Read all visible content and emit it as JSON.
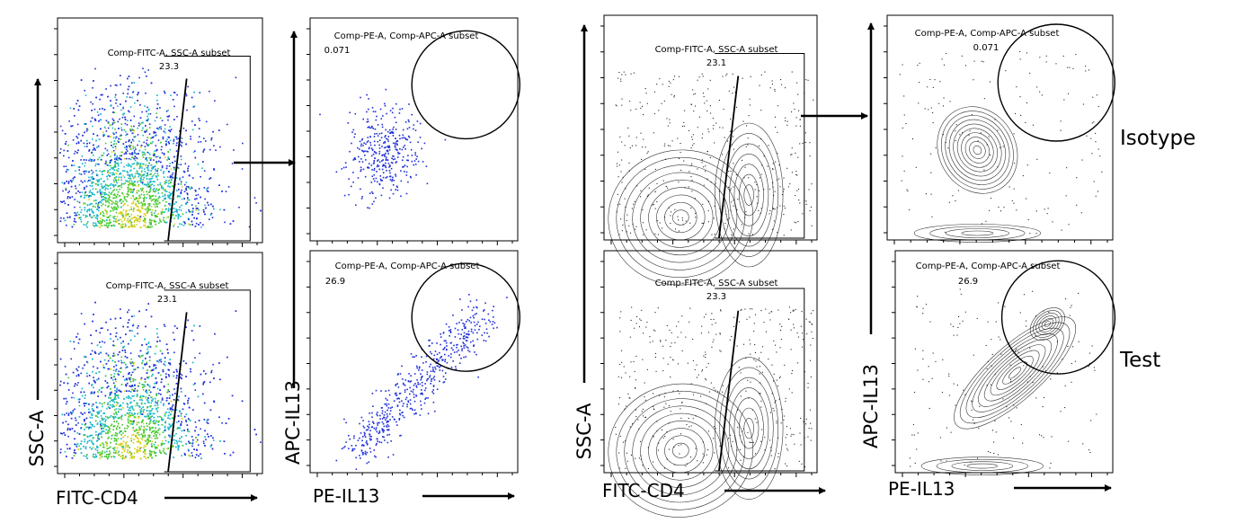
{
  "figure": {
    "side_labels": [
      "Isotype",
      "Test"
    ],
    "panels": [
      {
        "id": "dot-cd4-isotype",
        "style": "dot",
        "plot": "cd4",
        "gate_title": "Comp-FITC-A, SSC-A subset",
        "gate_value": "23.3"
      },
      {
        "id": "dot-cd4-test",
        "style": "dot",
        "plot": "cd4",
        "gate_title": "Comp-FITC-A, SSC-A subset",
        "gate_value": "23.1"
      },
      {
        "id": "dot-il13-isotype",
        "style": "dot",
        "plot": "il13",
        "gate_title": "Comp-PE-A, Comp-APC-A subset",
        "gate_value": "0.071"
      },
      {
        "id": "dot-il13-test",
        "style": "dot",
        "plot": "il13",
        "gate_title": "Comp-PE-A, Comp-APC-A subset",
        "gate_value": "26.9"
      },
      {
        "id": "contour-cd4-isotype",
        "style": "contour",
        "plot": "cd4",
        "gate_title": "Comp-FITC-A, SSC-A subset",
        "gate_value": "23.1"
      },
      {
        "id": "contour-cd4-test",
        "style": "contour",
        "plot": "cd4",
        "gate_title": "Comp-FITC-A, SSC-A subset",
        "gate_value": "23.3"
      },
      {
        "id": "contour-il13-isotype",
        "style": "contour",
        "plot": "il13",
        "gate_title": "Comp-PE-A, Comp-APC-A subset",
        "gate_value": "0.071"
      },
      {
        "id": "contour-il13-test",
        "style": "contour",
        "plot": "il13",
        "gate_title": "Comp-PE-A, Comp-APC-A subset",
        "gate_value": "26.9"
      }
    ],
    "axis_labels": {
      "dot_cd4": {
        "x": "FITC-CD4",
        "y": "SSC-A"
      },
      "dot_il13": {
        "x": "PE-IL13",
        "y": "APC-IL13"
      },
      "contour_cd4": {
        "x": "FITC-CD4",
        "y": "SSC-A"
      },
      "contour_il13": {
        "x": "PE-IL13",
        "y": "APC-IL13"
      }
    },
    "colors": {
      "dot_low": "#1f2fd8",
      "dot_mid": "#18b8c8",
      "dot_high": "#42c82a",
      "dot_peak": "#d8d020",
      "contour": "#000000",
      "gate": "#000000"
    }
  },
  "chart_data": [
    {
      "type": "scatter",
      "panel": "dot-cd4-isotype",
      "xlabel": "FITC-CD4",
      "ylabel": "SSC-A",
      "gate": "Comp-FITC-A, SSC-A subset",
      "gate_percent": 23.3
    },
    {
      "type": "scatter",
      "panel": "dot-cd4-test",
      "xlabel": "FITC-CD4",
      "ylabel": "SSC-A",
      "gate": "Comp-FITC-A, SSC-A subset",
      "gate_percent": 23.1
    },
    {
      "type": "scatter",
      "panel": "dot-il13-isotype",
      "xlabel": "PE-IL13",
      "ylabel": "APC-IL13",
      "gate": "Comp-PE-A, Comp-APC-A subset",
      "gate_percent": 0.071
    },
    {
      "type": "scatter",
      "panel": "dot-il13-test",
      "xlabel": "PE-IL13",
      "ylabel": "APC-IL13",
      "gate": "Comp-PE-A, Comp-APC-A subset",
      "gate_percent": 26.9
    },
    {
      "type": "scatter",
      "panel": "contour-cd4-isotype",
      "xlabel": "FITC-CD4",
      "ylabel": "SSC-A",
      "gate": "Comp-FITC-A, SSC-A subset",
      "gate_percent": 23.1
    },
    {
      "type": "scatter",
      "panel": "contour-cd4-test",
      "xlabel": "FITC-CD4",
      "ylabel": "SSC-A",
      "gate": "Comp-FITC-A, SSC-A subset",
      "gate_percent": 23.3
    },
    {
      "type": "scatter",
      "panel": "contour-il13-isotype",
      "xlabel": "PE-IL13",
      "ylabel": "APC-IL13",
      "gate": "Comp-PE-A, Comp-APC-A subset",
      "gate_percent": 0.071
    },
    {
      "type": "scatter",
      "panel": "contour-il13-test",
      "xlabel": "PE-IL13",
      "ylabel": "APC-IL13",
      "gate": "Comp-PE-A, Comp-APC-A subset",
      "gate_percent": 26.9
    }
  ]
}
